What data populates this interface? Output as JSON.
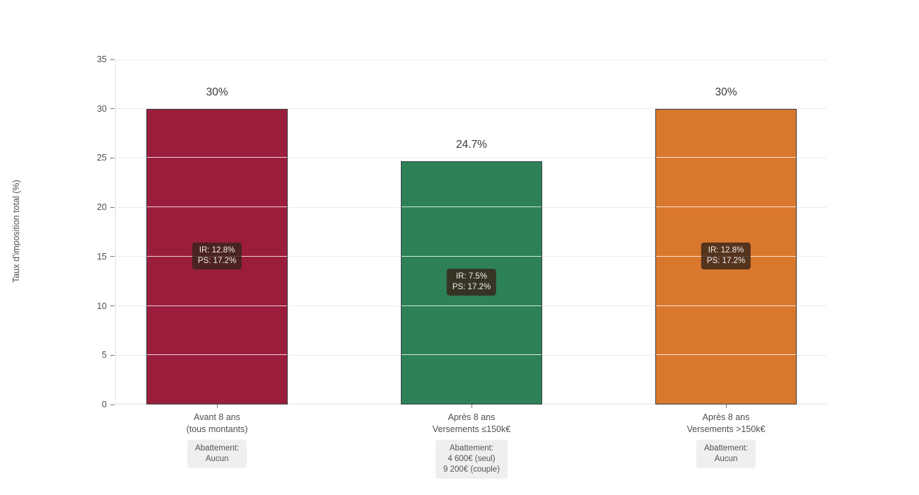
{
  "chart_data": {
    "type": "bar",
    "title": "",
    "ylabel": "Taux d'imposition total (%)",
    "xlabel": "",
    "ylim": [
      0,
      35
    ],
    "yticks": [
      0,
      5,
      10,
      15,
      20,
      25,
      30,
      35
    ],
    "grid": "horizontal",
    "legend": "none",
    "categories": [
      "Avant 8 ans (tous montants)",
      "Après 8 ans Versements ≤150k€",
      "Après 8 ans Versements >150k€"
    ],
    "values": [
      30,
      24.7,
      30
    ],
    "bars": [
      {
        "category_lines": [
          "Avant 8 ans",
          "(tous montants)"
        ],
        "value": 30,
        "value_label": "30%",
        "color": "#9A1E3C",
        "annotation_lines": [
          "IR: 12.8%",
          "PS: 17.2%"
        ],
        "footnote_lines": [
          "Abattement:",
          "Aucun"
        ]
      },
      {
        "category_lines": [
          "Après 8 ans",
          "Versements ≤150k€"
        ],
        "value": 24.7,
        "value_label": "24.7%",
        "color": "#2E8157",
        "annotation_lines": [
          "IR: 7.5%",
          "PS: 17.2%"
        ],
        "footnote_lines": [
          "Abattement:",
          "4 600€ (seul)",
          "9 200€ (couple)"
        ]
      },
      {
        "category_lines": [
          "Après 8 ans",
          "Versements >150k€"
        ],
        "value": 30,
        "value_label": "30%",
        "color": "#D9782D",
        "annotation_lines": [
          "IR: 12.8%",
          "PS: 17.2%"
        ],
        "footnote_lines": [
          "Abattement:",
          "Aucun"
        ]
      }
    ],
    "colors": {
      "background": "#ffffff",
      "bar_border": "#3a3f45",
      "grid": "#ededed",
      "grid_over_bar": "rgba(255,255,255,0.8)",
      "axis": "#e2e2e2",
      "tick": "#777777",
      "tick_label": "#4f4f4f",
      "value_label": "#3a3a3a",
      "annotation_bg": "rgba(56,36,27,0.82)",
      "annotation_text": "#f3ece8",
      "footnote_bg": "#efefef",
      "footnote_text": "#555555"
    }
  }
}
